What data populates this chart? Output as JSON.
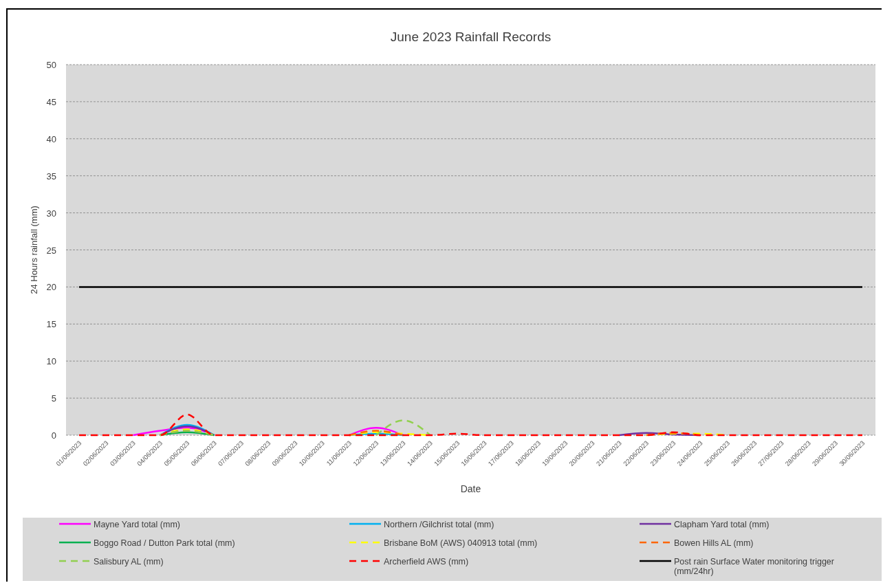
{
  "chart_data": {
    "type": "line",
    "title": "June 2023 Rainfall Records",
    "xlabel": "Date",
    "ylabel": "24 Hours rainfall (mm)",
    "categories": [
      "01/06/2023",
      "02/06/2023",
      "03/06/2023",
      "04/06/2023",
      "05/06/2023",
      "06/06/2023",
      "07/06/2023",
      "08/06/2023",
      "09/06/2023",
      "10/06/2023",
      "11/06/2023",
      "12/06/2023",
      "13/06/2023",
      "14/06/2023",
      "15/06/2023",
      "16/06/2023",
      "17/06/2023",
      "18/06/2023",
      "19/06/2023",
      "20/06/2023",
      "21/06/2023",
      "22/06/2023",
      "23/06/2023",
      "24/06/2023",
      "25/06/2023",
      "26/06/2023",
      "27/06/2023",
      "28/06/2023",
      "29/06/2023",
      "30/06/2023"
    ],
    "ylim": [
      0,
      50
    ],
    "yticks": [
      0,
      5,
      10,
      15,
      20,
      25,
      30,
      35,
      40,
      45,
      50
    ],
    "grid": "y",
    "legend": "bottom",
    "marker": "none",
    "series": [
      {
        "name": "Mayne Yard total (mm)",
        "color": "#ff00ff",
        "line_style": "solid",
        "values": [
          null,
          null,
          0,
          0.6,
          1.0,
          0,
          null,
          null,
          null,
          null,
          0,
          1.0,
          0,
          null,
          null,
          null,
          null,
          null,
          null,
          null,
          null,
          null,
          null,
          null,
          null,
          null,
          null,
          null,
          null,
          null
        ]
      },
      {
        "name": "Northern /Gilchrist total (mm)",
        "color": "#00b0f0",
        "line_style": "solid",
        "values": [
          null,
          null,
          null,
          0,
          1.4,
          0,
          null,
          null,
          null,
          null,
          0,
          0.2,
          0,
          null,
          null,
          null,
          null,
          null,
          null,
          null,
          null,
          null,
          null,
          null,
          null,
          null,
          null,
          null,
          null,
          null
        ]
      },
      {
        "name": "Clapham Yard total (mm)",
        "color": "#7030a0",
        "line_style": "solid",
        "values": [
          null,
          null,
          null,
          0,
          1.2,
          0,
          null,
          null,
          null,
          null,
          null,
          null,
          null,
          null,
          null,
          null,
          null,
          null,
          null,
          null,
          0,
          0.3,
          0.1,
          0,
          null,
          null,
          null,
          null,
          null,
          null
        ]
      },
      {
        "name": "Boggo Road / Dutton Park total (mm)",
        "color": "#00b050",
        "line_style": "solid",
        "values": [
          null,
          null,
          null,
          0,
          0.4,
          0,
          null,
          null,
          null,
          null,
          null,
          null,
          null,
          null,
          null,
          null,
          null,
          null,
          null,
          null,
          null,
          null,
          null,
          null,
          null,
          null,
          null,
          null,
          null,
          null
        ]
      },
      {
        "name": "Brisbane BoM (AWS) 040913 total (mm)",
        "color": "#ffff00",
        "line_style": "dashed",
        "values": [
          null,
          null,
          null,
          0,
          0.8,
          0,
          null,
          null,
          null,
          null,
          0,
          0.4,
          0.2,
          0,
          null,
          null,
          null,
          null,
          null,
          null,
          null,
          0,
          0.2,
          0.2,
          0,
          null,
          null,
          null,
          null,
          null
        ]
      },
      {
        "name": "Bowen Hills AL (mm)",
        "color": "#ff6600",
        "line_style": "dashed",
        "values": [
          null,
          null,
          null,
          0,
          0.6,
          0,
          null,
          null,
          null,
          null,
          0,
          0.6,
          0,
          null,
          null,
          null,
          null,
          null,
          null,
          null,
          null,
          0,
          0.3,
          0,
          null,
          null,
          null,
          null,
          null,
          null
        ]
      },
      {
        "name": "Salisbury AL (mm)",
        "color": "#92d050",
        "line_style": "dashed",
        "values": [
          null,
          null,
          null,
          0,
          0.6,
          0,
          null,
          null,
          null,
          null,
          null,
          0,
          2.0,
          0,
          null,
          null,
          null,
          null,
          null,
          null,
          null,
          null,
          null,
          null,
          null,
          null,
          null,
          null,
          null,
          null
        ]
      },
      {
        "name": "Archerfield AWS (mm)",
        "color": "#ff0000",
        "line_style": "dashed",
        "values": [
          0,
          0,
          0,
          0,
          2.8,
          0,
          0,
          0,
          0,
          0,
          0,
          0,
          0,
          0,
          0.2,
          0,
          0,
          0,
          0,
          0,
          0,
          0,
          0.4,
          0,
          0,
          0,
          0,
          0,
          0,
          0
        ]
      },
      {
        "name": "Post rain Surface Water monitoring trigger (mm/24hr)",
        "color": "#000000",
        "line_style": "solid",
        "values": [
          20,
          20,
          20,
          20,
          20,
          20,
          20,
          20,
          20,
          20,
          20,
          20,
          20,
          20,
          20,
          20,
          20,
          20,
          20,
          20,
          20,
          20,
          20,
          20,
          20,
          20,
          20,
          20,
          20,
          20
        ]
      }
    ]
  }
}
